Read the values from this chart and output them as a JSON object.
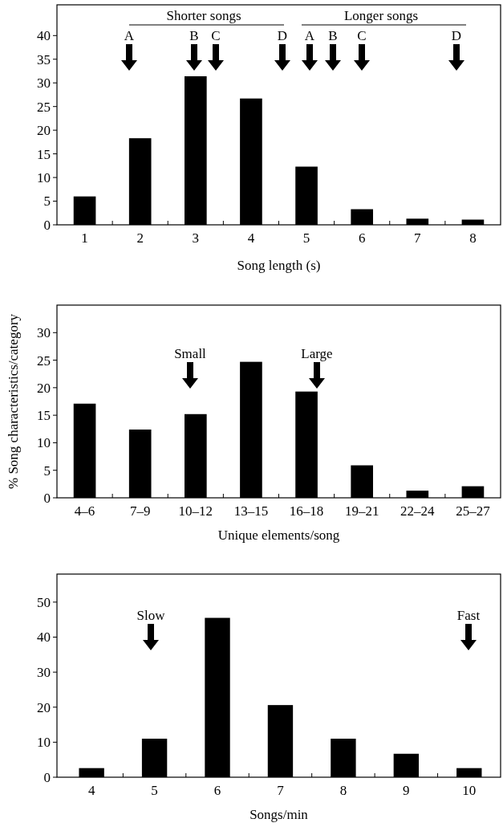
{
  "chart_data": [
    {
      "type": "bar",
      "xlabel": "Song length (s)",
      "x": [
        1,
        2,
        3,
        4,
        5,
        6,
        7,
        8
      ],
      "values": [
        6.0,
        18.3,
        31.4,
        26.7,
        12.3,
        3.3,
        1.3,
        1.1
      ],
      "color": "#000000",
      "xlim": [
        0.5,
        8.5
      ],
      "ylim": [
        0,
        46.5
      ],
      "xticks": [
        1,
        {
          "value": 1.5,
          "label": null
        },
        2,
        {
          "value": 2.5,
          "label": null
        },
        3,
        {
          "value": 3.5,
          "label": null
        },
        4,
        {
          "value": 4.5,
          "label": null
        },
        5,
        {
          "value": 5.5,
          "label": null
        },
        6,
        {
          "value": 6.5,
          "label": null
        },
        7,
        {
          "value": 7.5,
          "label": null
        },
        8
      ],
      "yticks": [
        0,
        5,
        10,
        15,
        20,
        25,
        30,
        35,
        40
      ],
      "annotations": [
        "Shorter songs",
        "A",
        "B",
        "C",
        "D",
        "Longer songs",
        "A",
        "B",
        "C",
        "D"
      ]
    },
    {
      "type": "bar",
      "xlabel": "Unique elements/song",
      "ylabel": "% Song characteristics/category",
      "categories": [
        "4–6",
        "7–9",
        "10–12",
        "13–15",
        "16–18",
        "19–21",
        "22–24",
        "25–27"
      ],
      "values": [
        17.1,
        12.4,
        15.2,
        24.7,
        19.3,
        5.9,
        1.3,
        2.1
      ],
      "color": "#000000",
      "ylim": [
        0,
        35
      ],
      "yticks": [
        0,
        5,
        10,
        15,
        20,
        25,
        30
      ],
      "annotations": [
        "Small",
        "Large"
      ]
    },
    {
      "type": "bar",
      "xlabel": "Songs/min",
      "x": [
        4,
        5,
        6,
        7,
        8,
        9,
        10
      ],
      "values": [
        2.6,
        11.0,
        45.5,
        20.6,
        11.0,
        6.7,
        2.6
      ],
      "color": "#000000",
      "xlim": [
        3.45,
        10.5
      ],
      "ylim": [
        0,
        58
      ],
      "xticks": [
        4,
        {
          "value": 4.5,
          "label": null
        },
        5,
        {
          "value": 5.5,
          "label": null
        },
        6,
        {
          "value": 6.5,
          "label": null
        },
        7,
        {
          "value": 7.5,
          "label": null
        },
        8,
        {
          "value": 8.5,
          "label": null
        },
        9,
        {
          "value": 9.5,
          "label": null
        },
        10
      ],
      "yticks": [
        0,
        10,
        20,
        30,
        40,
        50
      ],
      "annotations": [
        "Slow",
        "Fast"
      ]
    }
  ]
}
